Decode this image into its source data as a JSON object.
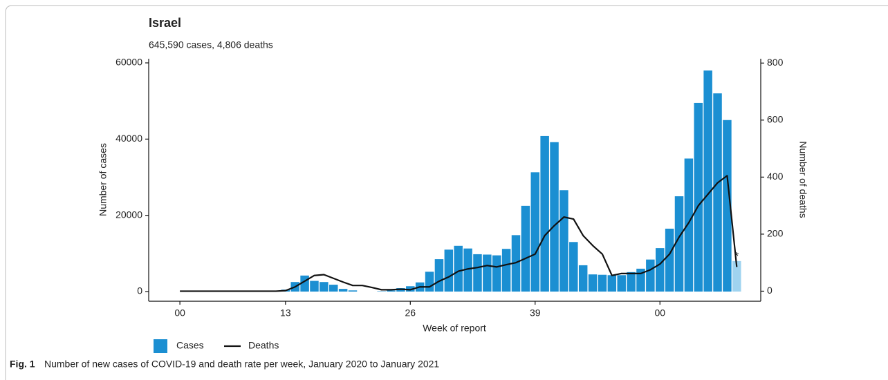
{
  "chart_data": {
    "type": "bar_line",
    "title": "Israel",
    "subtitle": "645,590 cases, 4,806 deaths",
    "xlabel": "Week of report",
    "ylabel": "Number of cases",
    "y2label": "Number of deaths",
    "annotation": "*",
    "caption_label": "Fig. 1",
    "caption": "Number of new cases of COVID-19 and death rate per week, January 2020 to January 2021",
    "xlim": [
      -3.25,
      60.5
    ],
    "xticks": [
      {
        "value": 0,
        "label": "00"
      },
      {
        "value": 11,
        "label": "13"
      },
      {
        "value": 24,
        "label": "26"
      },
      {
        "value": 37,
        "label": "39"
      },
      {
        "value": 50,
        "label": "00"
      }
    ],
    "ylim": [
      -2540,
      61090
    ],
    "yticks": [
      0,
      20000,
      40000,
      60000
    ],
    "y2lim": [
      -35.3,
      815.2
    ],
    "y2ticks": [
      0,
      200,
      400,
      600,
      800
    ],
    "legend": "bottom-left",
    "series": [
      {
        "name": "Cases",
        "kind": "bar",
        "color": "#1b8fd2",
        "last_bar_color": "#9fd3ef",
        "x": [
          11,
          12,
          13,
          14,
          15,
          16,
          17,
          18,
          19,
          20,
          21,
          22,
          23,
          24,
          25,
          26,
          27,
          28,
          29,
          30,
          31,
          32,
          33,
          34,
          35,
          36,
          37,
          38,
          39,
          40,
          41,
          42,
          43,
          44,
          45,
          46,
          47,
          48,
          49,
          50,
          51,
          52,
          53,
          54,
          55,
          56,
          57,
          58
        ],
        "values": [
          500,
          2500,
          4200,
          2800,
          2500,
          1800,
          700,
          300,
          0,
          0,
          100,
          300,
          900,
          1400,
          2400,
          5200,
          8500,
          11000,
          12000,
          11300,
          9800,
          9700,
          9500,
          11200,
          14800,
          22500,
          31300,
          40800,
          39200,
          26600,
          13000,
          6900,
          4500,
          4400,
          4300,
          4300,
          5100,
          6000,
          8400,
          11400,
          16500,
          25000,
          34900,
          49500,
          58000,
          52000,
          45000,
          8000
        ]
      },
      {
        "name": "Deaths",
        "kind": "line",
        "color": "#111111",
        "axis": "y2",
        "x": [
          0,
          1,
          2,
          3,
          4,
          5,
          6,
          7,
          8,
          9,
          10,
          11,
          12,
          13,
          14,
          15,
          16,
          17,
          18,
          19,
          20,
          21,
          22,
          23,
          24,
          25,
          26,
          27,
          28,
          29,
          30,
          31,
          32,
          33,
          34,
          35,
          36,
          37,
          38,
          39,
          40,
          41,
          42,
          43,
          44,
          45,
          46,
          47,
          48,
          49,
          50,
          51,
          52,
          53,
          54,
          55,
          56,
          57,
          58
        ],
        "values": [
          0,
          0,
          0,
          0,
          0,
          0,
          0,
          0,
          0,
          0,
          0,
          2,
          15,
          35,
          55,
          58,
          45,
          32,
          20,
          20,
          13,
          5,
          5,
          7,
          5,
          15,
          15,
          35,
          50,
          70,
          78,
          83,
          90,
          85,
          93,
          100,
          115,
          130,
          195,
          230,
          260,
          253,
          195,
          160,
          130,
          55,
          62,
          62,
          62,
          75,
          95,
          130,
          190,
          240,
          300,
          340,
          380,
          405,
          85
        ]
      }
    ]
  }
}
